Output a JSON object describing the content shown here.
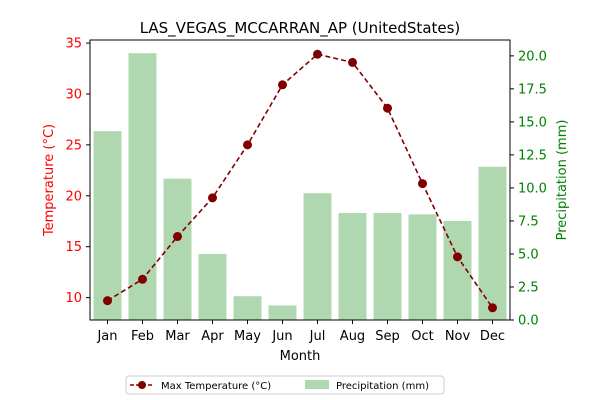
{
  "chart_data": {
    "type": "bar+line",
    "title": "LAS_VEGAS_MCCARRAN_AP (UnitedStates)",
    "xlabel": "Month",
    "categories": [
      "Jan",
      "Feb",
      "Mar",
      "Apr",
      "May",
      "Jun",
      "Jul",
      "Aug",
      "Sep",
      "Oct",
      "Nov",
      "Dec"
    ],
    "left_axis": {
      "label": "Temperature (°C)",
      "color": "#ff0000",
      "ylim": [
        7.8,
        35.3
      ],
      "ticks": [
        10,
        15,
        20,
        25,
        30,
        35
      ],
      "tick_labels": [
        "10",
        "15",
        "20",
        "25",
        "30",
        "35"
      ]
    },
    "right_axis": {
      "label": "Precipitation (mm)",
      "color": "#008000",
      "ylim": [
        0,
        21.2
      ],
      "ticks": [
        0,
        2.5,
        5,
        7.5,
        10,
        12.5,
        15,
        17.5,
        20
      ],
      "tick_labels": [
        "0.0",
        "2.5",
        "5.0",
        "7.5",
        "10.0",
        "12.5",
        "15.0",
        "17.5",
        "20.0"
      ]
    },
    "series": [
      {
        "name": "Max Temperature (°C)",
        "type": "line",
        "axis": "left",
        "color": "#800000",
        "style": "dashed with circle markers",
        "values": [
          9.7,
          11.8,
          16.0,
          19.8,
          25.0,
          30.9,
          33.9,
          33.1,
          28.6,
          21.2,
          14.0,
          9.0
        ]
      },
      {
        "name": "Precipitation (mm)",
        "type": "bar",
        "axis": "right",
        "color": "#b0d8b0",
        "values": [
          14.3,
          20.2,
          10.7,
          5.0,
          1.8,
          1.1,
          9.6,
          8.1,
          8.1,
          8.0,
          7.5,
          11.6
        ]
      }
    ],
    "legend": {
      "placement": "bottom-center",
      "columns": 2
    },
    "grid": false
  }
}
